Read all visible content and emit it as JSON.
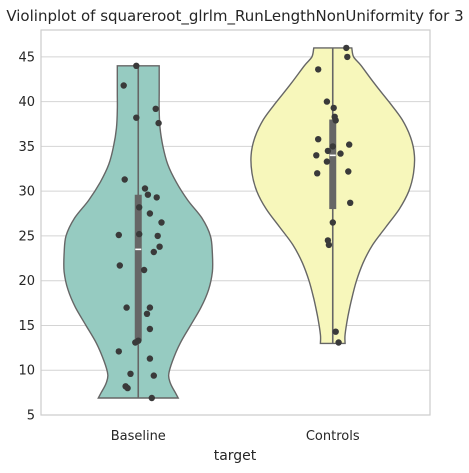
{
  "chart_data": {
    "type": "violin",
    "title": "Violinplot of squareroot_glrlm_RunLengthNonUniformity for 3",
    "xlabel": "target",
    "ylabel": "",
    "ylim": [
      5,
      48
    ],
    "yticks": [
      5,
      10,
      15,
      20,
      25,
      30,
      35,
      40,
      45
    ],
    "grid": true,
    "categories": [
      "Baseline",
      "Controls"
    ],
    "colors": {
      "Baseline": "#96cbc1",
      "Controls": "#f7f7bb",
      "outline": "#666666",
      "points": "#3a3a3a",
      "grid": "#d4d4d4",
      "box": "#666666",
      "median": "#ffffff"
    },
    "violins": [
      {
        "name": "Baseline",
        "min": 6.9,
        "max": 44.0,
        "q1": 13.3,
        "median": 23.5,
        "q3": 29.6,
        "profile": [
          [
            6.9,
            0.42
          ],
          [
            7.5,
            0.39
          ],
          [
            8.5,
            0.34
          ],
          [
            9.5,
            0.32
          ],
          [
            11,
            0.36
          ],
          [
            13,
            0.44
          ],
          [
            15,
            0.55
          ],
          [
            17,
            0.66
          ],
          [
            19,
            0.74
          ],
          [
            21,
            0.78
          ],
          [
            23,
            0.78
          ],
          [
            25,
            0.76
          ],
          [
            27,
            0.67
          ],
          [
            29,
            0.52
          ],
          [
            31,
            0.4
          ],
          [
            33,
            0.31
          ],
          [
            35,
            0.26
          ],
          [
            37,
            0.23
          ],
          [
            39,
            0.22
          ],
          [
            41,
            0.22
          ],
          [
            43,
            0.22
          ],
          [
            44,
            0.22
          ]
        ],
        "points": [
          {
            "x": -0.02,
            "y": 44.0
          },
          {
            "x": -0.15,
            "y": 41.8
          },
          {
            "x": 0.18,
            "y": 39.2
          },
          {
            "x": -0.02,
            "y": 38.2
          },
          {
            "x": 0.21,
            "y": 37.6
          },
          {
            "x": -0.14,
            "y": 31.3
          },
          {
            "x": 0.07,
            "y": 30.3
          },
          {
            "x": 0.1,
            "y": 29.6
          },
          {
            "x": 0.19,
            "y": 29.3
          },
          {
            "x": 0.01,
            "y": 28.2
          },
          {
            "x": 0.12,
            "y": 27.5
          },
          {
            "x": 0.24,
            "y": 26.5
          },
          {
            "x": -0.2,
            "y": 25.1
          },
          {
            "x": 0.01,
            "y": 25.2
          },
          {
            "x": 0.2,
            "y": 25.0
          },
          {
            "x": 0.22,
            "y": 23.8
          },
          {
            "x": 0.16,
            "y": 23.2
          },
          {
            "x": -0.19,
            "y": 21.7
          },
          {
            "x": 0.06,
            "y": 21.2
          },
          {
            "x": -0.12,
            "y": 17.0
          },
          {
            "x": 0.12,
            "y": 17.0
          },
          {
            "x": 0.09,
            "y": 16.3
          },
          {
            "x": 0.12,
            "y": 14.6
          },
          {
            "x": 0.0,
            "y": 13.3
          },
          {
            "x": -0.03,
            "y": 13.1
          },
          {
            "x": -0.2,
            "y": 12.1
          },
          {
            "x": 0.12,
            "y": 11.3
          },
          {
            "x": -0.08,
            "y": 9.6
          },
          {
            "x": 0.16,
            "y": 9.4
          },
          {
            "x": -0.13,
            "y": 8.2
          },
          {
            "x": -0.11,
            "y": 8.0
          },
          {
            "x": 0.14,
            "y": 6.9
          }
        ]
      },
      {
        "name": "Controls",
        "min": 13.0,
        "max": 46.0,
        "q1": 28.0,
        "median": 34.0,
        "q3": 38.0,
        "profile": [
          [
            13,
            0.13
          ],
          [
            14,
            0.13
          ],
          [
            16,
            0.16
          ],
          [
            18,
            0.2
          ],
          [
            20,
            0.25
          ],
          [
            22,
            0.32
          ],
          [
            24,
            0.42
          ],
          [
            26,
            0.56
          ],
          [
            28,
            0.7
          ],
          [
            30,
            0.8
          ],
          [
            32,
            0.85
          ],
          [
            34,
            0.86
          ],
          [
            36,
            0.82
          ],
          [
            38,
            0.73
          ],
          [
            40,
            0.59
          ],
          [
            42,
            0.44
          ],
          [
            44,
            0.3
          ],
          [
            45,
            0.22
          ],
          [
            46,
            0.2
          ]
        ],
        "points": [
          {
            "x": 0.14,
            "y": 46.0
          },
          {
            "x": 0.15,
            "y": 45.0
          },
          {
            "x": -0.15,
            "y": 43.6
          },
          {
            "x": -0.06,
            "y": 40.0
          },
          {
            "x": 0.01,
            "y": 39.3
          },
          {
            "x": 0.02,
            "y": 38.3
          },
          {
            "x": 0.03,
            "y": 37.9
          },
          {
            "x": -0.15,
            "y": 35.8
          },
          {
            "x": 0.0,
            "y": 35.0
          },
          {
            "x": 0.17,
            "y": 35.2
          },
          {
            "x": -0.05,
            "y": 34.5
          },
          {
            "x": 0.08,
            "y": 34.2
          },
          {
            "x": -0.17,
            "y": 34.0
          },
          {
            "x": -0.06,
            "y": 33.3
          },
          {
            "x": -0.16,
            "y": 32.0
          },
          {
            "x": 0.16,
            "y": 32.2
          },
          {
            "x": 0.18,
            "y": 28.7
          },
          {
            "x": 0.0,
            "y": 26.5
          },
          {
            "x": -0.05,
            "y": 24.5
          },
          {
            "x": -0.04,
            "y": 24.0
          },
          {
            "x": 0.03,
            "y": 14.3
          },
          {
            "x": 0.06,
            "y": 13.1
          }
        ]
      }
    ]
  }
}
